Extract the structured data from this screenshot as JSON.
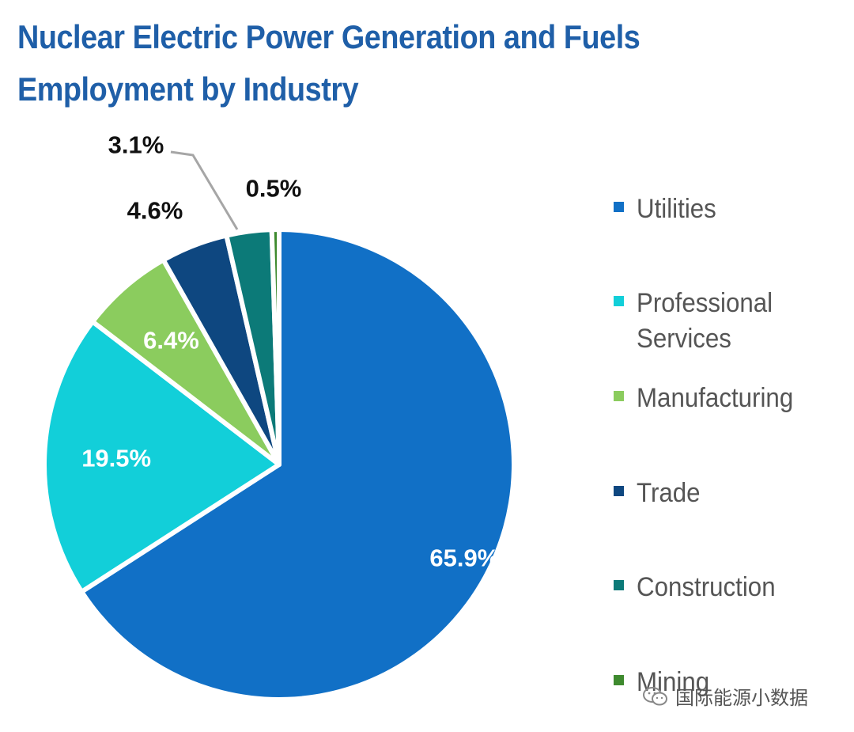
{
  "chart_data": {
    "type": "pie",
    "title": "Nuclear Electric Power Generation and Fuels Employment by Industry",
    "title_lines": [
      "Nuclear Electric Power Generation and Fuels",
      "Employment by Industry"
    ],
    "categories": [
      "Utilities",
      "Professional Services",
      "Manufacturing",
      "Trade",
      "Construction",
      "Mining"
    ],
    "values": [
      65.9,
      19.5,
      6.4,
      4.6,
      3.1,
      0.5
    ],
    "value_labels": [
      "65.9%",
      "19.5%",
      "6.4%",
      "4.6%",
      "3.1%",
      "0.5%"
    ],
    "colors": [
      "#1170c6",
      "#12cfd9",
      "#8bcc5e",
      "#0e4780",
      "#0c7a78",
      "#3e8a2e"
    ],
    "legend_position": "right",
    "start_angle_deg": 0,
    "direction": "clockwise"
  },
  "watermark": {
    "text": "国际能源小数据"
  }
}
